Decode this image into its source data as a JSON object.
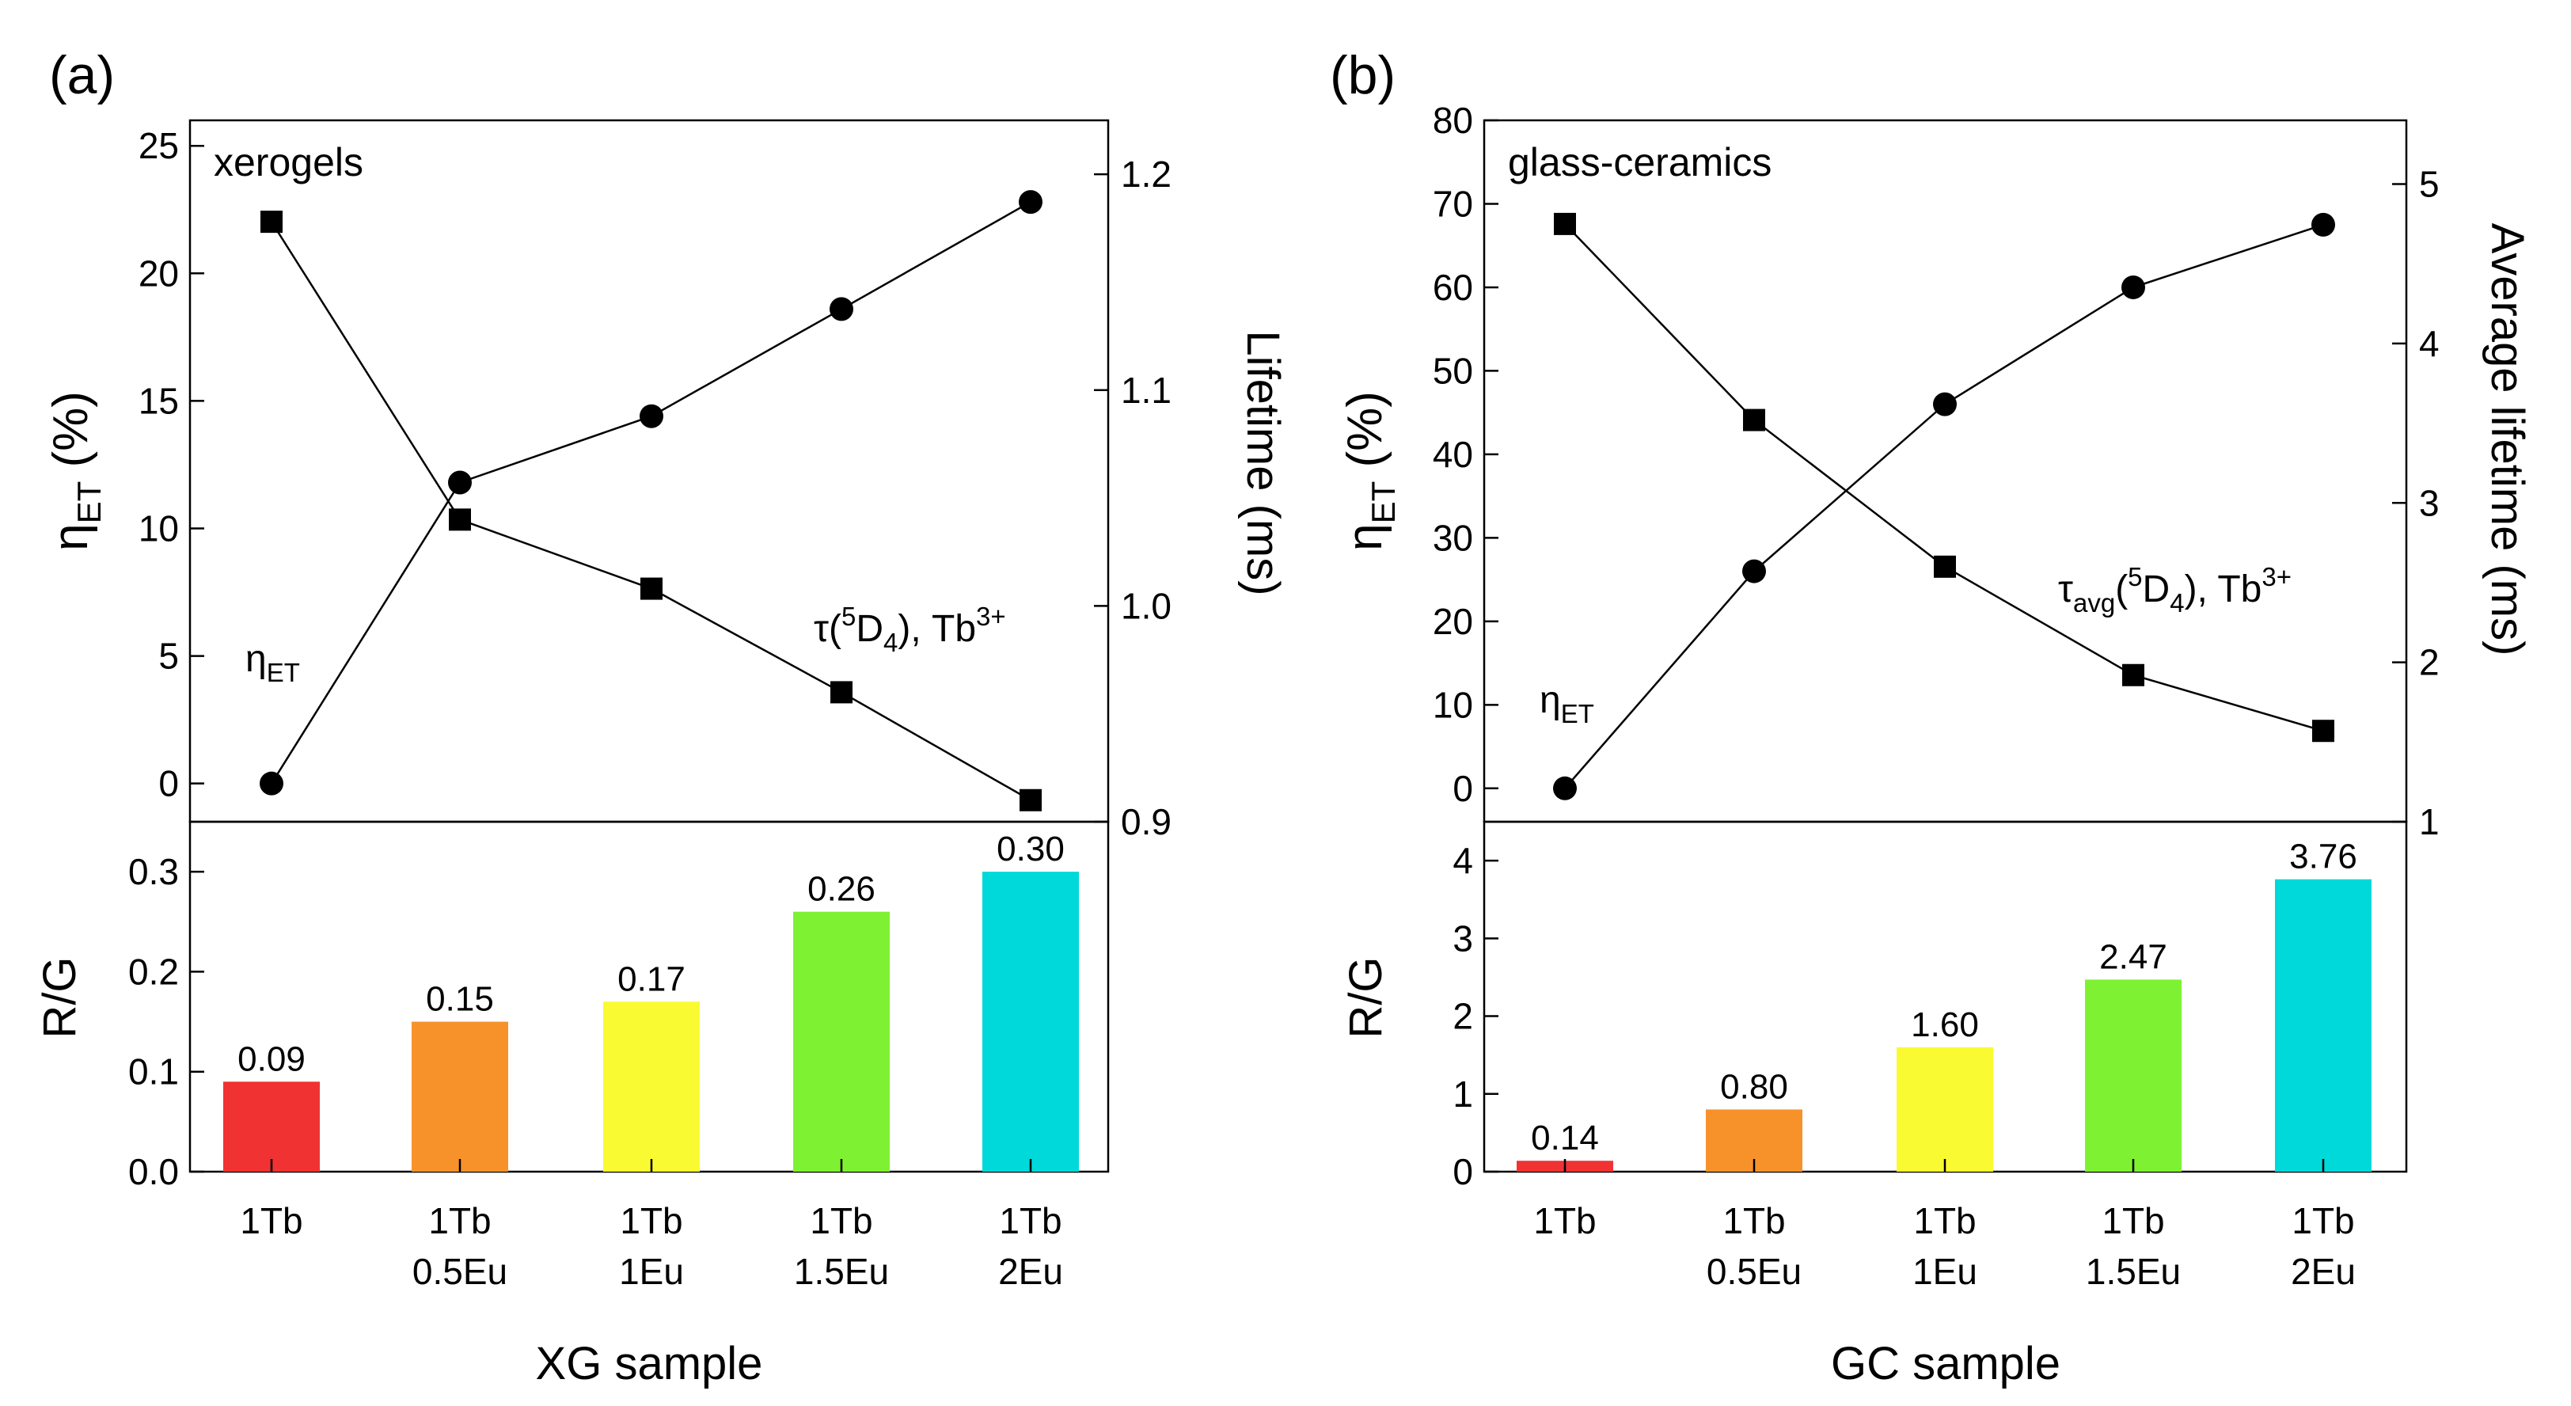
{
  "chart_data": [
    {
      "panel": "(a)",
      "type": "line",
      "inset_label": "xerogels",
      "xlabel": "XG sample",
      "categories": [
        {
          "line1": "1Tb",
          "line2": ""
        },
        {
          "line1": "1Tb",
          "line2": "0.5Eu"
        },
        {
          "line1": "1Tb",
          "line2": "1Eu"
        },
        {
          "line1": "1Tb",
          "line2": "1.5Eu"
        },
        {
          "line1": "1Tb",
          "line2": "2Eu"
        }
      ],
      "top": {
        "left_axis": {
          "prefix": "η",
          "sub": "ET",
          "suffix": " (%)",
          "range": [
            -1.5,
            26
          ],
          "ticks": [
            0,
            5,
            10,
            15,
            20,
            25
          ]
        },
        "right_axis": {
          "label": "Lifetime (ms)",
          "range": [
            0.9,
            1.225
          ],
          "ticks": [
            "0.9",
            "1.0",
            "1.1",
            "1.2"
          ]
        },
        "series": [
          {
            "name": "ηET",
            "axis": "left",
            "marker": "circle",
            "values": [
              0,
              11.8,
              14.4,
              18.6,
              22.8
            ],
            "annotation": {
              "prefix": "η",
              "sub": "ET",
              "sup": "",
              "suffix": ""
            }
          },
          {
            "name": "τ(5D4), Tb3+",
            "axis": "right",
            "marker": "square",
            "values": [
              1.178,
              1.04,
              1.008,
              0.96,
              0.91
            ],
            "annotation": {
              "prefix": "τ(",
              "sup": "5",
              "mid": "D",
              "sub": "4",
              "suffix": "), Tb",
              "sup2": "3+"
            }
          }
        ]
      },
      "bottom": {
        "type": "bar",
        "ylabel": "R/G",
        "ylim": [
          0,
          0.35
        ],
        "ticks": [
          "0.0",
          "0.1",
          "0.2",
          "0.3"
        ],
        "values": [
          0.09,
          0.15,
          0.17,
          0.26,
          0.3
        ],
        "labels": [
          "0.09",
          "0.15",
          "0.17",
          "0.26",
          "0.30"
        ],
        "colors": [
          "#f03232",
          "#f7922b",
          "#fafa32",
          "#7ef232",
          "#00d9d9"
        ]
      }
    },
    {
      "panel": "(b)",
      "type": "line",
      "inset_label": "glass-ceramics",
      "xlabel": "GC sample",
      "categories": [
        {
          "line1": "1Tb",
          "line2": ""
        },
        {
          "line1": "1Tb",
          "line2": "0.5Eu"
        },
        {
          "line1": "1Tb",
          "line2": "1Eu"
        },
        {
          "line1": "1Tb",
          "line2": "1.5Eu"
        },
        {
          "line1": "1Tb",
          "line2": "2Eu"
        }
      ],
      "top": {
        "left_axis": {
          "prefix": "η",
          "sub": "ET",
          "suffix": " (%)",
          "range": [
            -4,
            80
          ],
          "ticks": [
            0,
            10,
            20,
            30,
            40,
            50,
            60,
            70,
            80
          ]
        },
        "right_axis": {
          "label": "Average lifetime (ms)",
          "range": [
            1,
            5.4
          ],
          "ticks": [
            "1",
            "2",
            "3",
            "4",
            "5"
          ]
        },
        "series": [
          {
            "name": "ηET",
            "axis": "left",
            "marker": "circle",
            "values": [
              0,
              26,
              46,
              60,
              67.5
            ],
            "annotation": {
              "prefix": "η",
              "sub": "ET",
              "sup": "",
              "suffix": ""
            }
          },
          {
            "name": "τavg(5D4), Tb3+",
            "axis": "right",
            "marker": "square",
            "values": [
              4.75,
              3.52,
              2.6,
              1.92,
              1.57
            ],
            "annotation": {
              "prefix": "τ",
              "sub0": "avg",
              "mid0": "(",
              "sup": "5",
              "mid": "D",
              "sub": "4",
              "suffix": "), Tb",
              "sup2": "3+"
            }
          }
        ]
      },
      "bottom": {
        "type": "bar",
        "ylabel": "R/G",
        "ylim": [
          0,
          4.5
        ],
        "ticks": [
          "0",
          "1",
          "2",
          "3",
          "4"
        ],
        "values": [
          0.14,
          0.8,
          1.6,
          2.47,
          3.76
        ],
        "labels": [
          "0.14",
          "0.80",
          "1.60",
          "2.47",
          "3.76"
        ],
        "colors": [
          "#f03232",
          "#f7922b",
          "#fafa32",
          "#7ef232",
          "#00d9d9"
        ]
      }
    }
  ]
}
